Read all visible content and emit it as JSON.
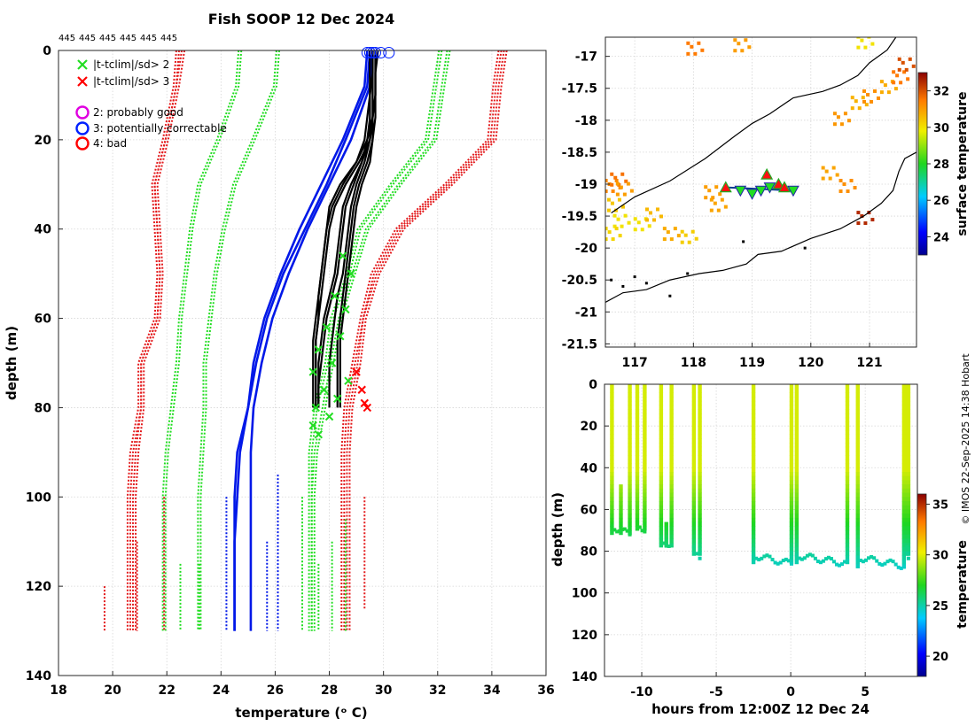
{
  "header": {
    "title": "Fish SOOP 12 Dec 2024",
    "profile_count_labels": [
      "445",
      "445",
      "445",
      "445",
      "445",
      "445"
    ]
  },
  "colors": {
    "clim_2sd": "#22dd22",
    "clim_3sd": "#e31a1c",
    "clim_mean": "#0018e8",
    "profile": "#000000",
    "flag_good": "#e000e0",
    "flag_correctable": "#0020ff",
    "flag_bad": "#ff0000",
    "land": "#000000",
    "grid": "#d6d6d6"
  },
  "legend": {
    "items": [
      {
        "symbol": "x",
        "label": "|t-tclim|/sd> 2",
        "color": "#22dd22"
      },
      {
        "symbol": "x",
        "label": "|t-tclim|/sd> 3",
        "color": "#ff0000"
      },
      {
        "symbol": "o",
        "label": "2: probably good",
        "color": "#e000e0"
      },
      {
        "symbol": "o",
        "label": "3: potentially correctable",
        "color": "#0020ff"
      },
      {
        "symbol": "o",
        "label": "4: bad",
        "color": "#ff0000"
      }
    ]
  },
  "credit": "© IMOS 22-Sep-2025 14:38 Hobart",
  "chart_data": [
    {
      "id": "profiles",
      "type": "line",
      "title": "Fish SOOP 12 Dec 2024",
      "xlabel": "temperature (ᵒ C)",
      "ylabel": "depth (m)",
      "xlim": [
        18,
        36
      ],
      "ylim": [
        140,
        0
      ],
      "xticks": [
        18,
        20,
        22,
        24,
        26,
        28,
        30,
        32,
        34,
        36
      ],
      "yticks": [
        0,
        20,
        40,
        60,
        80,
        100,
        120,
        140
      ],
      "grid": true,
      "y_reversed": true,
      "depth_levels": [
        0,
        8,
        20,
        30,
        40,
        50,
        60,
        70,
        80,
        90,
        100,
        110,
        120,
        130
      ],
      "clim_mean": [
        {
          "name": "clim mean",
          "values": [
            29.4,
            29.3,
            28.5,
            27.7,
            26.9,
            26.2,
            25.6,
            25.2,
            25.0,
            24.7,
            24.6,
            24.5,
            24.5,
            24.5
          ]
        },
        {
          "name": "clim mean",
          "values": [
            29.5,
            29.4,
            28.6,
            27.9,
            27.1,
            26.3,
            25.7,
            25.3,
            25.0,
            24.6,
            24.5,
            24.5,
            24.5,
            24.5
          ]
        },
        {
          "name": "clim mean",
          "values": [
            29.6,
            29.5,
            28.8,
            28.0,
            27.2,
            26.5,
            25.9,
            25.5,
            25.2,
            25.1,
            25.1,
            25.1,
            25.1,
            25.1
          ]
        }
      ],
      "clim_2sd": [
        {
          "name": "mean-2sd",
          "values": [
            24.7,
            24.6,
            23.9,
            23.2,
            22.9,
            22.7,
            22.5,
            22.4,
            22.2,
            22.0,
            21.9,
            21.9,
            21.9,
            21.9
          ]
        },
        {
          "name": "mean-2sd",
          "values": [
            26.1,
            26.0,
            25.2,
            24.5,
            24.1,
            23.8,
            23.6,
            23.4,
            23.4,
            23.3,
            23.2,
            23.2,
            23.2,
            23.2
          ]
        },
        {
          "name": "mean+2sd",
          "values": [
            32.1,
            31.9,
            31.6,
            30.3,
            29.1,
            28.7,
            28.1,
            27.9,
            27.5,
            27.3,
            27.3,
            27.3,
            27.3,
            27.3
          ]
        },
        {
          "name": "mean+2sd",
          "values": [
            32.4,
            32.2,
            31.9,
            30.6,
            29.4,
            28.9,
            28.4,
            28.1,
            27.8,
            27.5,
            27.4,
            27.4,
            27.4,
            27.4
          ]
        }
      ],
      "clim_3sd": [
        {
          "name": "mean-3sd",
          "values": [
            22.6,
            22.4,
            22.0,
            21.6,
            21.7,
            21.8,
            21.7,
            21.1,
            21.1,
            20.9,
            20.8,
            20.8,
            20.8,
            20.8
          ]
        },
        {
          "name": "mean-3sd",
          "values": [
            22.4,
            22.3,
            21.9,
            21.5,
            21.6,
            21.7,
            21.6,
            21.0,
            21.0,
            20.7,
            20.6,
            20.6,
            20.6,
            20.6
          ]
        },
        {
          "name": "mean+3sd",
          "values": [
            34.3,
            34.1,
            33.9,
            32.3,
            30.5,
            29.6,
            29.2,
            28.9,
            28.6,
            28.5,
            28.5,
            28.5,
            28.5,
            28.5
          ]
        },
        {
          "name": "mean+3sd",
          "values": [
            34.5,
            34.3,
            34.1,
            32.5,
            30.7,
            29.8,
            29.3,
            29.1,
            28.8,
            28.7,
            28.7,
            28.7,
            28.7,
            28.7
          ]
        }
      ],
      "profiles_depth": [
        0,
        5,
        10,
        15,
        20,
        25,
        30,
        35,
        40,
        45,
        50,
        55,
        60,
        65,
        70,
        75,
        80
      ],
      "profiles": [
        {
          "values": [
            29.6,
            29.6,
            29.6,
            29.6,
            29.5,
            29.2,
            28.8,
            28.5,
            28.4,
            28.3,
            28.2,
            28.0,
            27.8,
            27.7,
            27.6,
            27.6,
            27.6
          ]
        },
        {
          "values": [
            29.5,
            29.5,
            29.5,
            29.5,
            29.5,
            29.3,
            29.0,
            28.8,
            28.7,
            28.6,
            28.5,
            28.3,
            28.2,
            28.1,
            28.0,
            28.0,
            28.0
          ]
        },
        {
          "values": [
            29.7,
            29.7,
            29.7,
            29.6,
            29.5,
            29.1,
            28.6,
            28.2,
            28.0,
            27.9,
            27.8,
            27.7,
            27.6,
            27.5,
            27.5,
            27.5,
            27.5
          ]
        },
        {
          "values": [
            29.6,
            29.6,
            29.6,
            29.6,
            29.6,
            29.4,
            29.1,
            28.9,
            28.8,
            28.7,
            28.6,
            28.5,
            28.4,
            28.3,
            28.3,
            28.3,
            28.3
          ]
        },
        {
          "values": [
            29.8,
            29.7,
            29.7,
            29.6,
            29.4,
            29.0,
            28.4,
            28.0,
            27.9,
            27.8,
            27.7,
            27.6,
            27.5,
            27.4,
            27.4,
            27.4,
            27.4
          ]
        },
        {
          "values": [
            29.6,
            29.6,
            29.5,
            29.5,
            29.4,
            29.2,
            28.9,
            28.6,
            28.5,
            28.4,
            28.3,
            28.1,
            27.9,
            27.8,
            27.7,
            27.6,
            27.6
          ]
        },
        {
          "values": [
            29.7,
            29.7,
            29.7,
            29.7,
            29.6,
            29.5,
            29.2,
            29.0,
            28.9,
            28.8,
            28.7,
            28.6,
            28.5,
            28.4,
            28.4,
            28.4,
            28.4
          ]
        },
        {
          "values": [
            29.5,
            29.5,
            29.5,
            29.4,
            29.3,
            29.0,
            28.5,
            28.1,
            27.9,
            27.8,
            27.7,
            27.6,
            27.6,
            27.5,
            27.5,
            27.5,
            27.5
          ]
        }
      ],
      "flag_circles": [
        {
          "x": 29.4,
          "y": 0.5
        },
        {
          "x": 29.5,
          "y": 0.5
        },
        {
          "x": 29.6,
          "y": 0.5
        },
        {
          "x": 29.7,
          "y": 0.5
        },
        {
          "x": 29.9,
          "y": 0.5
        },
        {
          "x": 30.2,
          "y": 0.5
        }
      ],
      "flag_x_green": [
        {
          "x": 28.5,
          "y": 46
        },
        {
          "x": 28.8,
          "y": 50
        },
        {
          "x": 28.2,
          "y": 55
        },
        {
          "x": 28.6,
          "y": 58
        },
        {
          "x": 27.9,
          "y": 62
        },
        {
          "x": 28.4,
          "y": 64
        },
        {
          "x": 27.6,
          "y": 67
        },
        {
          "x": 28.1,
          "y": 70
        },
        {
          "x": 27.4,
          "y": 72
        },
        {
          "x": 28.7,
          "y": 74
        },
        {
          "x": 27.8,
          "y": 76
        },
        {
          "x": 28.3,
          "y": 78
        },
        {
          "x": 27.5,
          "y": 80
        },
        {
          "x": 28.0,
          "y": 82
        },
        {
          "x": 27.4,
          "y": 84
        },
        {
          "x": 27.6,
          "y": 86
        }
      ],
      "flag_x_red": [
        {
          "x": 29.0,
          "y": 72
        },
        {
          "x": 29.2,
          "y": 76
        },
        {
          "x": 29.3,
          "y": 79
        },
        {
          "x": 29.4,
          "y": 80
        }
      ]
    },
    {
      "id": "map",
      "type": "scatter",
      "xlabel": "",
      "ylabel": "",
      "xlim": [
        116.5,
        121.8
      ],
      "ylim": [
        -21.55,
        -16.7
      ],
      "xticks": [
        117,
        118,
        119,
        120,
        121
      ],
      "yticks": [
        -17,
        -17.5,
        -18,
        -18.5,
        -19,
        -19.5,
        -20,
        -20.5,
        -21,
        -21.5
      ],
      "grid": true,
      "colorbar_label": "surface temperature",
      "colorbar_ticks": [
        24,
        26,
        28,
        30,
        32
      ],
      "colorbar_range": [
        23,
        33
      ],
      "isobath": [
        [
          116.6,
          -19.45
        ],
        [
          117.0,
          -19.2
        ],
        [
          117.6,
          -18.95
        ],
        [
          118.2,
          -18.6
        ],
        [
          118.7,
          -18.25
        ],
        [
          119.0,
          -18.05
        ],
        [
          119.3,
          -17.9
        ],
        [
          119.7,
          -17.65
        ],
        [
          120.2,
          -17.55
        ],
        [
          120.5,
          -17.45
        ],
        [
          120.8,
          -17.3
        ],
        [
          121.0,
          -17.1
        ],
        [
          121.3,
          -16.9
        ],
        [
          121.45,
          -16.7
        ]
      ],
      "coastline": [
        [
          116.5,
          -20.85
        ],
        [
          116.8,
          -20.7
        ],
        [
          117.2,
          -20.65
        ],
        [
          117.6,
          -20.5
        ],
        [
          118.1,
          -20.4
        ],
        [
          118.5,
          -20.35
        ],
        [
          118.9,
          -20.25
        ],
        [
          119.1,
          -20.1
        ],
        [
          119.5,
          -20.05
        ],
        [
          120.0,
          -19.85
        ],
        [
          120.5,
          -19.7
        ],
        [
          120.9,
          -19.5
        ],
        [
          121.2,
          -19.3
        ],
        [
          121.4,
          -19.1
        ],
        [
          121.5,
          -18.8
        ],
        [
          121.6,
          -18.6
        ],
        [
          121.8,
          -18.5
        ]
      ],
      "sst_patches": [
        {
          "lon": 116.6,
          "lat": -19.0,
          "temp": 31.3
        },
        {
          "lon": 116.7,
          "lat": -18.9,
          "temp": 31.6
        },
        {
          "lon": 116.8,
          "lat": -19.05,
          "temp": 31.0
        },
        {
          "lon": 116.65,
          "lat": -19.3,
          "temp": 30.4
        },
        {
          "lon": 116.75,
          "lat": -19.55,
          "temp": 30.0
        },
        {
          "lon": 116.6,
          "lat": -19.75,
          "temp": 30.2
        },
        {
          "lon": 117.1,
          "lat": -19.6,
          "temp": 30.0
        },
        {
          "lon": 117.3,
          "lat": -19.45,
          "temp": 30.6
        },
        {
          "lon": 117.6,
          "lat": -19.75,
          "temp": 30.8
        },
        {
          "lon": 117.9,
          "lat": -19.8,
          "temp": 30.3
        },
        {
          "lon": 118.4,
          "lat": -19.3,
          "temp": 30.9
        },
        {
          "lon": 118.3,
          "lat": -19.1,
          "temp": 31.0
        },
        {
          "lon": 120.5,
          "lat": -17.95,
          "temp": 31.1
        },
        {
          "lon": 120.8,
          "lat": -17.7,
          "temp": 30.7
        },
        {
          "lon": 121.0,
          "lat": -17.6,
          "temp": 31.2
        },
        {
          "lon": 121.3,
          "lat": -17.45,
          "temp": 30.8
        },
        {
          "lon": 121.5,
          "lat": -17.3,
          "temp": 31.5
        },
        {
          "lon": 121.6,
          "lat": -17.1,
          "temp": 32.0
        },
        {
          "lon": 120.3,
          "lat": -18.8,
          "temp": 30.9
        },
        {
          "lon": 120.6,
          "lat": -19.0,
          "temp": 31.2
        },
        {
          "lon": 120.9,
          "lat": -19.5,
          "temp": 32.5
        },
        {
          "lon": 118.0,
          "lat": -16.85,
          "temp": 31.5
        },
        {
          "lon": 118.8,
          "lat": -16.8,
          "temp": 31.0
        },
        {
          "lon": 120.9,
          "lat": -16.75,
          "temp": 30.0
        }
      ],
      "track_up_triangles": [
        {
          "lon": 118.55,
          "lat": -19.05
        },
        {
          "lon": 119.25,
          "lat": -18.85
        },
        {
          "lon": 119.45,
          "lat": -19.0
        },
        {
          "lon": 119.55,
          "lat": -19.05
        }
      ],
      "track_down_triangles": [
        {
          "lon": 118.8,
          "lat": -19.1
        },
        {
          "lon": 119.0,
          "lat": -19.15
        },
        {
          "lon": 119.15,
          "lat": -19.1
        },
        {
          "lon": 119.3,
          "lat": -19.05
        },
        {
          "lon": 119.7,
          "lat": -19.1
        }
      ],
      "track_dots": [
        {
          "lon": 119.9,
          "lat": -20.0
        },
        {
          "lon": 118.85,
          "lat": -19.9
        },
        {
          "lon": 117.9,
          "lat": -20.4
        },
        {
          "lon": 116.6,
          "lat": -20.5
        },
        {
          "lon": 116.8,
          "lat": -20.6
        },
        {
          "lon": 117.0,
          "lat": -20.45
        },
        {
          "lon": 117.2,
          "lat": -20.55
        },
        {
          "lon": 117.6,
          "lat": -20.75
        }
      ]
    },
    {
      "id": "section",
      "type": "scatter",
      "xlabel": "hours from 12:00Z 12 Dec 24",
      "ylabel": "depth (m)",
      "xlim": [
        -12.5,
        8.5
      ],
      "ylim": [
        140,
        0
      ],
      "xticks": [
        -10,
        -5,
        0,
        5
      ],
      "yticks": [
        0,
        20,
        40,
        60,
        80,
        100,
        120,
        140
      ],
      "grid": true,
      "colorbar_label": "temperature",
      "colorbar_ticks": [
        20,
        25,
        30,
        35
      ],
      "colorbar_range": [
        18,
        36
      ],
      "casts": [
        {
          "start": -12.0,
          "end": -10.8,
          "bottom": 72,
          "dip": 48
        },
        {
          "start": -10.3,
          "end": -9.8,
          "bottom": 70
        },
        {
          "start": -8.7,
          "end": -8.0,
          "bottom": 78,
          "dip": 66
        },
        {
          "start": -6.5,
          "end": -6.1,
          "bottom": 82
        },
        {
          "start": -2.5,
          "end": 0.05,
          "bottom": 86
        },
        {
          "start": 0.4,
          "end": 3.8,
          "bottom": 86
        },
        {
          "start": 4.5,
          "end": 7.6,
          "bottom": 87
        },
        {
          "start": 7.8,
          "end": 7.9,
          "bottom": 82
        }
      ]
    }
  ]
}
